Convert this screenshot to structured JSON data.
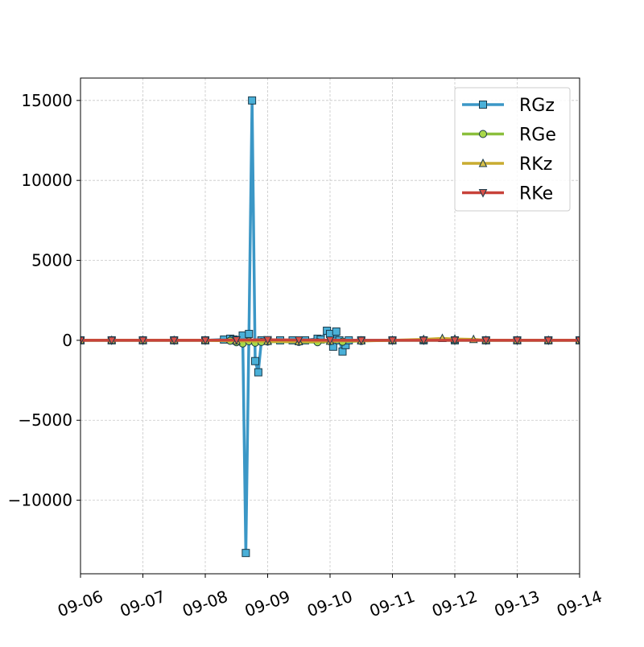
{
  "chart_data": {
    "type": "line",
    "title": "",
    "xlabel": "",
    "ylabel": "",
    "x_ticks": [
      "09-06",
      "09-07",
      "09-08",
      "09-09",
      "09-10",
      "09-11",
      "09-12",
      "09-13",
      "09-14"
    ],
    "x_range_days": [
      0,
      8
    ],
    "ylim": [
      -14600,
      16400
    ],
    "y_ticks": [
      15000,
      10000,
      5000,
      0,
      -5000,
      -10000
    ],
    "y_tick_labels": [
      "15000",
      "10000",
      "5000",
      "0",
      "−5000",
      "−10000"
    ],
    "grid": true,
    "legend_position": "top-right",
    "series": [
      {
        "name": "RGz",
        "color": "#3b97c6",
        "marker_color": "#4ab0d8",
        "marker": "square",
        "x": [
          0,
          0.5,
          1.0,
          1.5,
          2.0,
          2.3,
          2.4,
          2.45,
          2.5,
          2.55,
          2.6,
          2.65,
          2.7,
          2.75,
          2.8,
          2.85,
          2.9,
          3.0,
          3.2,
          3.4,
          3.6,
          3.8,
          3.85,
          3.95,
          4.0,
          4.05,
          4.1,
          4.15,
          4.2,
          4.25,
          4.3,
          4.5,
          5.0,
          5.5,
          6.0,
          6.5,
          7.0,
          7.5,
          8.0
        ],
        "y": [
          0,
          0,
          0,
          0,
          0,
          50,
          100,
          50,
          0,
          20,
          300,
          -13300,
          400,
          15000,
          -1300,
          -2000,
          0,
          0,
          0,
          0,
          0,
          100,
          50,
          600,
          400,
          -400,
          550,
          0,
          -700,
          -300,
          0,
          0,
          0,
          0,
          0,
          0,
          0,
          0,
          0
        ]
      },
      {
        "name": "RGe",
        "color": "#8bbf3c",
        "marker_color": "#a8d84a",
        "marker": "circle",
        "x": [
          0,
          0.5,
          1.0,
          1.5,
          2.0,
          2.4,
          2.5,
          2.6,
          2.7,
          2.8,
          2.9,
          3.0,
          3.5,
          3.8,
          4.0,
          4.2,
          4.5,
          5.0,
          5.5,
          6.0,
          6.5,
          7.0,
          7.5,
          8.0
        ],
        "y": [
          0,
          0,
          0,
          0,
          0,
          -30,
          -120,
          -200,
          -60,
          -150,
          -100,
          -80,
          -100,
          -120,
          -60,
          -90,
          -40,
          0,
          0,
          0,
          0,
          0,
          0,
          0
        ]
      },
      {
        "name": "RKz",
        "color": "#c8ac30",
        "marker_color": "#d8c04a",
        "marker": "triangle-up",
        "x": [
          0,
          0.5,
          1.0,
          1.5,
          2.0,
          2.5,
          3.0,
          3.5,
          4.0,
          4.5,
          5.0,
          5.5,
          5.8,
          6.0,
          6.3,
          6.5,
          7.0,
          7.5,
          8.0
        ],
        "y": [
          0,
          0,
          0,
          0,
          0,
          -40,
          -60,
          -80,
          -50,
          -30,
          0,
          60,
          120,
          80,
          60,
          0,
          0,
          0,
          0
        ]
      },
      {
        "name": "RKe",
        "color": "#c8423a",
        "marker_color": "#d9524a",
        "marker": "triangle-down",
        "x": [
          0,
          0.5,
          1.0,
          1.5,
          2.0,
          2.5,
          3.0,
          3.5,
          4.0,
          4.5,
          5.0,
          5.5,
          6.0,
          6.5,
          7.0,
          7.5,
          8.0
        ],
        "y": [
          0,
          0,
          0,
          0,
          0,
          20,
          30,
          20,
          10,
          0,
          0,
          0,
          0,
          0,
          0,
          0,
          0
        ]
      }
    ]
  }
}
